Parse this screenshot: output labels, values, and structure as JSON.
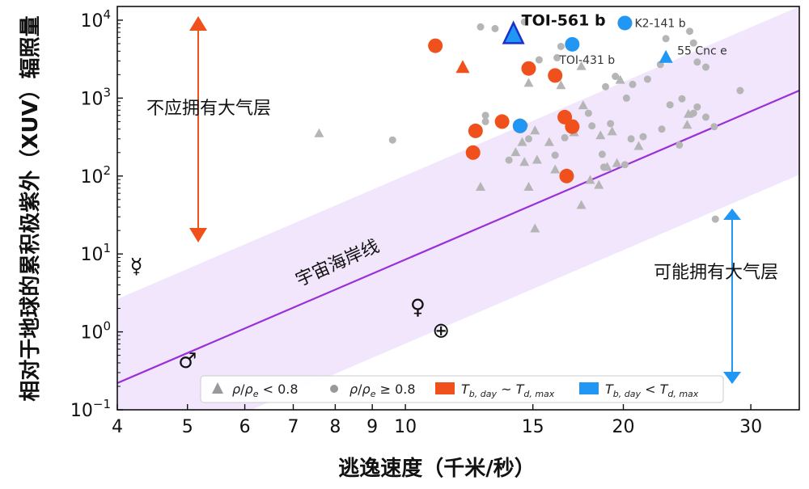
{
  "chart_data": {
    "type": "scatter",
    "xlabel": "逃逸速度（千米/秒）",
    "ylabel": "相对于地球的累积极紫外（XUV）辐照量",
    "x_scale": "log",
    "y_scale": "log",
    "xlim": [
      4,
      35
    ],
    "ylim": [
      0.1,
      15000
    ],
    "x_ticks": [
      "4",
      "5",
      "6",
      "7",
      "8",
      "9",
      "10",
      "15",
      "20",
      "30"
    ],
    "y_ticks": [
      {
        "v": 0.1,
        "base": "10",
        "exp": "−1"
      },
      {
        "v": 1,
        "base": "10",
        "exp": "0"
      },
      {
        "v": 10,
        "base": "10",
        "exp": "1"
      },
      {
        "v": 100,
        "base": "10",
        "exp": "2"
      },
      {
        "v": 1000,
        "base": "10",
        "exp": "3"
      },
      {
        "v": 10000,
        "base": "10",
        "exp": "4"
      }
    ],
    "shoreline": {
      "label": "宇宙海岸线",
      "points": [
        [
          4,
          0.22
        ],
        [
          35,
          1250
        ]
      ],
      "band_factor": 12,
      "color": "#9b30d9",
      "band_color": "#f1e6fb"
    },
    "region_labels": {
      "no_atmosphere": "不应拥有大气层",
      "may_have_atmosphere": "可能拥有大气层"
    },
    "legend": [
      {
        "marker": "triangle",
        "color": "#999999",
        "label": "ρ/ρe < 0.8"
      },
      {
        "marker": "circle",
        "color": "#999999",
        "label": "ρ/ρe ≥ 0.8"
      },
      {
        "marker": "square",
        "color": "#f0511c",
        "label": "Tb,day ~ Td,max"
      },
      {
        "marker": "square",
        "color": "#2196f3",
        "label": "Tb,day < Td,max"
      }
    ],
    "colors": {
      "gray": "#b3b3b3",
      "orange": "#f0511c",
      "blue": "#2196f3",
      "arrow_orange": "#f0511c",
      "arrow_blue": "#2196f3"
    },
    "series": [
      {
        "group": "gray",
        "marker": "circle",
        "points": [
          [
            9.6,
            290
          ],
          [
            12.7,
            8200
          ],
          [
            13.3,
            7800
          ],
          [
            12.9,
            600
          ],
          [
            12.9,
            500
          ],
          [
            14.6,
            450
          ],
          [
            14.8,
            300
          ],
          [
            15.3,
            3100
          ],
          [
            16.2,
            3300
          ],
          [
            14.6,
            9500
          ],
          [
            16.4,
            4600
          ],
          [
            18.9,
            1400
          ],
          [
            19.5,
            1900
          ],
          [
            20.2,
            1000
          ],
          [
            20.6,
            1500
          ],
          [
            21.6,
            1750
          ],
          [
            22.9,
            5800
          ],
          [
            22.5,
            2700
          ],
          [
            23.2,
            820
          ],
          [
            24.7,
            7200
          ],
          [
            25.0,
            5100
          ],
          [
            25.3,
            2900
          ],
          [
            26.0,
            2500
          ],
          [
            24.1,
            980
          ],
          [
            25.3,
            770
          ],
          [
            25.0,
            640
          ],
          [
            26.0,
            570
          ],
          [
            22.6,
            400
          ],
          [
            20.5,
            300
          ],
          [
            17.1,
            480
          ],
          [
            18.1,
            440
          ],
          [
            19.2,
            470
          ],
          [
            16.6,
            310
          ],
          [
            18.7,
            190
          ],
          [
            20.1,
            140
          ],
          [
            18.8,
            130
          ],
          [
            29.0,
            1250
          ],
          [
            26.7,
            430
          ],
          [
            26.8,
            28
          ],
          [
            23.9,
            250
          ],
          [
            13.9,
            160
          ],
          [
            16.1,
            185
          ],
          [
            17.9,
            640
          ],
          [
            21.3,
            320
          ]
        ]
      },
      {
        "group": "gray",
        "marker": "triangle",
        "points": [
          [
            7.6,
            350
          ],
          [
            14.8,
            1550
          ],
          [
            16.4,
            1450
          ],
          [
            17.5,
            2550
          ],
          [
            17.6,
            800
          ],
          [
            19.8,
            1700
          ],
          [
            14.2,
            200
          ],
          [
            14.6,
            150
          ],
          [
            15.1,
            380
          ],
          [
            14.5,
            270
          ],
          [
            15.8,
            270
          ],
          [
            16.1,
            120
          ],
          [
            15.2,
            160
          ],
          [
            12.7,
            72
          ],
          [
            14.8,
            72
          ],
          [
            15.1,
            21
          ],
          [
            17.5,
            42
          ],
          [
            18.5,
            76
          ],
          [
            18.0,
            88
          ],
          [
            19.0,
            130
          ],
          [
            19.6,
            145
          ],
          [
            21.0,
            240
          ],
          [
            17.1,
            360
          ],
          [
            19.3,
            370
          ],
          [
            24.6,
            620
          ],
          [
            24.5,
            450
          ],
          [
            18.6,
            330
          ]
        ]
      },
      {
        "group": "orange",
        "marker": "circle",
        "points": [
          [
            11.0,
            4700
          ],
          [
            14.8,
            2400
          ],
          [
            16.1,
            1950
          ],
          [
            12.5,
            380
          ],
          [
            12.4,
            200
          ],
          [
            13.6,
            500
          ],
          [
            14.4,
            440
          ],
          [
            16.6,
            570
          ],
          [
            17.0,
            430
          ],
          [
            16.7,
            100
          ]
        ]
      },
      {
        "group": "orange",
        "marker": "triangle",
        "points": [
          [
            12.0,
            2450
          ]
        ]
      },
      {
        "group": "blue",
        "marker": "circle",
        "points": [
          [
            20.1,
            9200
          ],
          [
            17.0,
            4900
          ],
          [
            14.4,
            440
          ]
        ]
      },
      {
        "group": "blue",
        "marker": "triangle",
        "points": [
          [
            22.9,
            3300
          ]
        ]
      }
    ],
    "highlight": {
      "label": "TOI-561 b",
      "x": 14.1,
      "y": 6300,
      "marker": "triangle",
      "color": "#2196f3",
      "edge": "#1a2fd0"
    },
    "annotations": [
      {
        "label": "K2-141 b",
        "x": 20.1,
        "y": 9200
      },
      {
        "label": "TOI-431 b",
        "x": 17.0,
        "y": 4900
      },
      {
        "label": "55 Cnc e",
        "x": 22.9,
        "y": 3300
      }
    ],
    "planet_symbols": [
      {
        "name": "Mercury",
        "glyph": "☿",
        "x": 4.25,
        "y": 7
      },
      {
        "name": "Mars",
        "glyph": "♂",
        "x": 5.0,
        "y": 0.43
      },
      {
        "name": "Venus",
        "glyph": "♀",
        "x": 10.4,
        "y": 2.1
      },
      {
        "name": "Earth",
        "glyph": "⊕",
        "x": 11.2,
        "y": 1.05
      }
    ]
  }
}
